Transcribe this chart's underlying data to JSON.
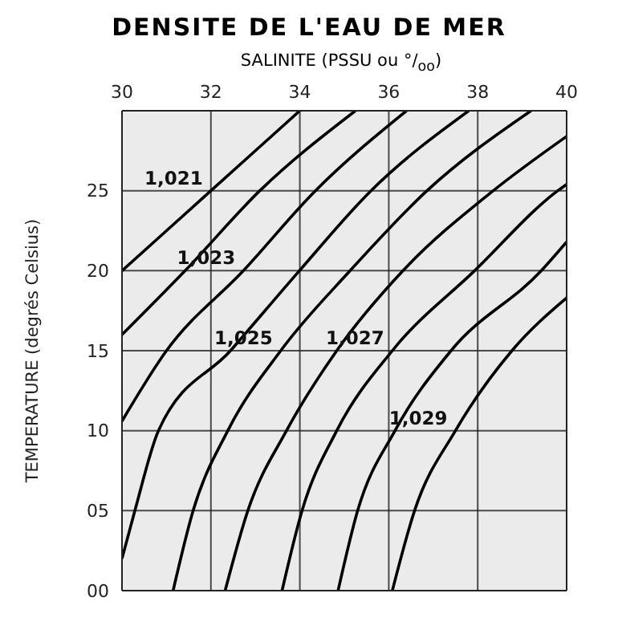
{
  "chart_data": {
    "type": "line",
    "title": "DENSITE DE L'EAU DE MER",
    "xlabel": "SALINITE  (PSSU ou °/$_{oo}$)",
    "ylabel": "TEMPERATURE  (degrés Celsius)",
    "xlim": [
      30,
      40
    ],
    "xticks": [
      30,
      32,
      34,
      36,
      38,
      40
    ],
    "ylim": [
      0,
      30
    ],
    "yticks": [
      {
        "value": 0,
        "label": "00"
      },
      {
        "value": 5,
        "label": "05"
      },
      10,
      15,
      20,
      25
    ],
    "grid": true,
    "series": [
      {
        "name": "1,021",
        "color": "#000000",
        "x": [
          30,
          32,
          34
        ],
        "values": [
          20,
          25,
          30
        ]
      },
      {
        "color": "#000000",
        "x": [
          30,
          31.42,
          33.1,
          35.25
        ],
        "values": [
          16,
          20,
          25,
          30
        ]
      },
      {
        "name": "1,023",
        "color": "#000000",
        "x": [
          30,
          31.0,
          32.73,
          34.35,
          36.4
        ],
        "values": [
          10.6,
          15,
          20,
          25,
          30
        ]
      },
      {
        "color": "#000000",
        "x": [
          30,
          30.29,
          30.82,
          32.44,
          33.99,
          35.6,
          37.8
        ],
        "values": [
          2,
          5,
          10,
          15,
          20,
          25,
          30
        ]
      },
      {
        "name": "1,025",
        "color": "#000000",
        "x": [
          31.15,
          31.6,
          32.38,
          33.57,
          35.13,
          36.86,
          39.2
        ],
        "values": [
          0,
          5,
          10,
          15,
          20,
          25,
          30
        ]
      },
      {
        "color": "#000000",
        "x": [
          32.32,
          32.83,
          33.7,
          34.83,
          36.32,
          38.35,
          40
        ],
        "values": [
          0,
          5,
          10,
          15,
          20,
          25,
          28.4
        ]
      },
      {
        "name": "1,027",
        "color": "#000000",
        "x": [
          33.6,
          34.05,
          34.83,
          36.08,
          37.93,
          39.8,
          40
        ],
        "values": [
          0,
          5,
          10,
          15,
          20,
          25,
          25.4
        ]
      },
      {
        "color": "#000000",
        "x": [
          34.86,
          35.3,
          36.14,
          37.4,
          39.43,
          40
        ],
        "values": [
          0,
          5,
          10,
          15,
          20,
          21.8
        ]
      },
      {
        "name": "1,029",
        "color": "#000000",
        "x": [
          36.08,
          36.58,
          37.5,
          38.77,
          40
        ],
        "values": [
          0,
          5,
          10,
          15,
          18.3
        ]
      }
    ]
  }
}
